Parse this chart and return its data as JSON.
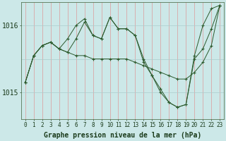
{
  "title": "Graphe pression niveau de la mer (hPa)",
  "background_color": "#cce8e8",
  "grid_color_v": "#dd9999",
  "grid_color_h": "#aacccc",
  "line_color": "#2d5a2d",
  "marker_color": "#2d5a2d",
  "label_color": "#1a3a1a",
  "series": [
    [
      1015.15,
      1015.55,
      1015.7,
      1015.75,
      1015.65,
      1015.6,
      1015.55,
      1015.55,
      1015.5,
      1015.5,
      1015.5,
      1015.5,
      1015.5,
      1015.45,
      1015.4,
      1015.35,
      1015.3,
      1015.25,
      1015.2,
      1015.2,
      1015.3,
      1015.45,
      1015.7,
      1016.3
    ],
    [
      1015.15,
      1015.55,
      1015.7,
      1015.75,
      1015.65,
      1015.8,
      1016.0,
      1016.1,
      1015.85,
      1015.8,
      1016.12,
      1015.95,
      1015.95,
      1015.85,
      1015.5,
      1015.25,
      1015.05,
      1014.85,
      1014.78,
      1014.82,
      1015.5,
      1015.65,
      1015.95,
      1016.3
    ],
    [
      1015.15,
      1015.55,
      1015.7,
      1015.75,
      1015.65,
      1015.6,
      1015.8,
      1016.05,
      1015.85,
      1015.8,
      1016.12,
      1015.95,
      1015.95,
      1015.85,
      1015.45,
      1015.25,
      1015.0,
      1014.85,
      1014.78,
      1014.82,
      1015.55,
      1016.0,
      1016.25,
      1016.3
    ]
  ],
  "x_hours": [
    0,
    1,
    2,
    3,
    4,
    5,
    6,
    7,
    8,
    9,
    10,
    11,
    12,
    13,
    14,
    15,
    16,
    17,
    18,
    19,
    20,
    21,
    22,
    23
  ],
  "ylim": [
    1014.6,
    1016.35
  ],
  "yticks": [
    1015,
    1016
  ],
  "ylabel_fontsize": 7,
  "xlabel_fontsize": 5.5,
  "title_fontsize": 7
}
